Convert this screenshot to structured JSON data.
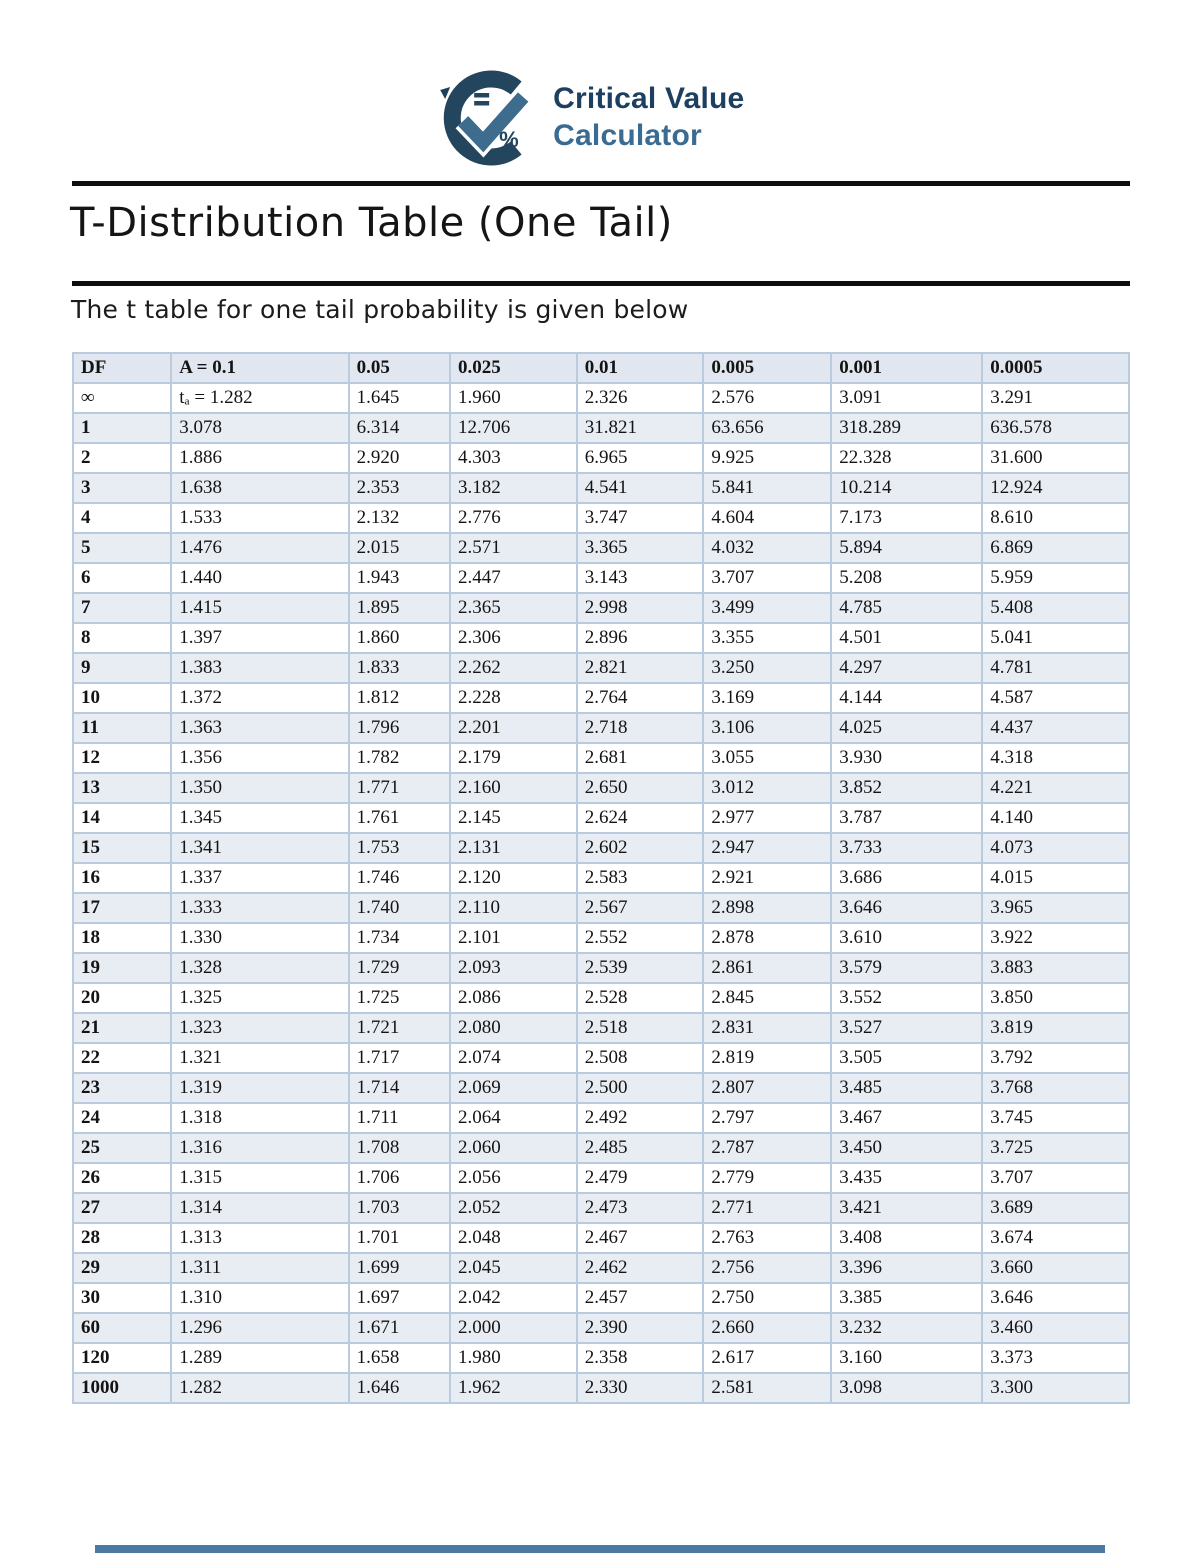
{
  "logo": {
    "line1": "Critical Value",
    "line2": "Calculator",
    "icon": "checkmark-percent-logo",
    "color_dark": "#1d4060",
    "color_mid": "#3a6b92"
  },
  "page": {
    "title": "T-Distribution Table (One Tail)",
    "subtitle": "The t table for one tail probability is given below"
  },
  "colors": {
    "stripe_row": "#e8ecf3",
    "header_row": "#e1e7f0",
    "cell_border": "#b9cbdd",
    "footer_bar": "#4c79a2",
    "rule": "#0e0e0e"
  },
  "table": {
    "headers": [
      "DF",
      "A = 0.1",
      "0.05",
      "0.025",
      "0.01",
      "0.005",
      "0.001",
      "0.0005"
    ],
    "rows": [
      {
        "df": "∞",
        "values": [
          "tₐ = 1.282",
          "1.645",
          "1.960",
          "2.326",
          "2.576",
          "3.091",
          "3.291"
        ]
      },
      {
        "df": "1",
        "values": [
          "3.078",
          "6.314",
          "12.706",
          "31.821",
          "63.656",
          "318.289",
          "636.578"
        ]
      },
      {
        "df": "2",
        "values": [
          "1.886",
          "2.920",
          "4.303",
          "6.965",
          "9.925",
          "22.328",
          "31.600"
        ]
      },
      {
        "df": "3",
        "values": [
          "1.638",
          "2.353",
          "3.182",
          "4.541",
          "5.841",
          "10.214",
          "12.924"
        ]
      },
      {
        "df": "4",
        "values": [
          "1.533",
          "2.132",
          "2.776",
          "3.747",
          "4.604",
          "7.173",
          "8.610"
        ]
      },
      {
        "df": "5",
        "values": [
          "1.476",
          "2.015",
          "2.571",
          "3.365",
          "4.032",
          "5.894",
          "6.869"
        ]
      },
      {
        "df": "6",
        "values": [
          "1.440",
          "1.943",
          "2.447",
          "3.143",
          "3.707",
          "5.208",
          "5.959"
        ]
      },
      {
        "df": "7",
        "values": [
          "1.415",
          "1.895",
          "2.365",
          "2.998",
          "3.499",
          "4.785",
          "5.408"
        ]
      },
      {
        "df": "8",
        "values": [
          "1.397",
          "1.860",
          "2.306",
          "2.896",
          "3.355",
          "4.501",
          "5.041"
        ]
      },
      {
        "df": "9",
        "values": [
          "1.383",
          "1.833",
          "2.262",
          "2.821",
          "3.250",
          "4.297",
          "4.781"
        ]
      },
      {
        "df": "10",
        "values": [
          "1.372",
          "1.812",
          "2.228",
          "2.764",
          "3.169",
          "4.144",
          "4.587"
        ]
      },
      {
        "df": "11",
        "values": [
          "1.363",
          "1.796",
          "2.201",
          "2.718",
          "3.106",
          "4.025",
          "4.437"
        ]
      },
      {
        "df": "12",
        "values": [
          "1.356",
          "1.782",
          "2.179",
          "2.681",
          "3.055",
          "3.930",
          "4.318"
        ]
      },
      {
        "df": "13",
        "values": [
          "1.350",
          "1.771",
          "2.160",
          "2.650",
          "3.012",
          "3.852",
          "4.221"
        ]
      },
      {
        "df": "14",
        "values": [
          "1.345",
          "1.761",
          "2.145",
          "2.624",
          "2.977",
          "3.787",
          "4.140"
        ]
      },
      {
        "df": "15",
        "values": [
          "1.341",
          "1.753",
          "2.131",
          "2.602",
          "2.947",
          "3.733",
          "4.073"
        ]
      },
      {
        "df": "16",
        "values": [
          "1.337",
          "1.746",
          "2.120",
          "2.583",
          "2.921",
          "3.686",
          "4.015"
        ]
      },
      {
        "df": "17",
        "values": [
          "1.333",
          "1.740",
          "2.110",
          "2.567",
          "2.898",
          "3.646",
          "3.965"
        ]
      },
      {
        "df": "18",
        "values": [
          "1.330",
          "1.734",
          "2.101",
          "2.552",
          "2.878",
          "3.610",
          "3.922"
        ]
      },
      {
        "df": "19",
        "values": [
          "1.328",
          "1.729",
          "2.093",
          "2.539",
          "2.861",
          "3.579",
          "3.883"
        ]
      },
      {
        "df": "20",
        "values": [
          "1.325",
          "1.725",
          "2.086",
          "2.528",
          "2.845",
          "3.552",
          "3.850"
        ]
      },
      {
        "df": "21",
        "values": [
          "1.323",
          "1.721",
          "2.080",
          "2.518",
          "2.831",
          "3.527",
          "3.819"
        ]
      },
      {
        "df": "22",
        "values": [
          "1.321",
          "1.717",
          "2.074",
          "2.508",
          "2.819",
          "3.505",
          "3.792"
        ]
      },
      {
        "df": "23",
        "values": [
          "1.319",
          "1.714",
          "2.069",
          "2.500",
          "2.807",
          "3.485",
          "3.768"
        ]
      },
      {
        "df": "24",
        "values": [
          "1.318",
          "1.711",
          "2.064",
          "2.492",
          "2.797",
          "3.467",
          "3.745"
        ]
      },
      {
        "df": "25",
        "values": [
          "1.316",
          "1.708",
          "2.060",
          "2.485",
          "2.787",
          "3.450",
          "3.725"
        ]
      },
      {
        "df": "26",
        "values": [
          "1.315",
          "1.706",
          "2.056",
          "2.479",
          "2.779",
          "3.435",
          "3.707"
        ]
      },
      {
        "df": "27",
        "values": [
          "1.314",
          "1.703",
          "2.052",
          "2.473",
          "2.771",
          "3.421",
          "3.689"
        ]
      },
      {
        "df": "28",
        "values": [
          "1.313",
          "1.701",
          "2.048",
          "2.467",
          "2.763",
          "3.408",
          "3.674"
        ]
      },
      {
        "df": "29",
        "values": [
          "1.311",
          "1.699",
          "2.045",
          "2.462",
          "2.756",
          "3.396",
          "3.660"
        ]
      },
      {
        "df": "30",
        "values": [
          "1.310",
          "1.697",
          "2.042",
          "2.457",
          "2.750",
          "3.385",
          "3.646"
        ]
      },
      {
        "df": "60",
        "values": [
          "1.296",
          "1.671",
          "2.000",
          "2.390",
          "2.660",
          "3.232",
          "3.460"
        ]
      },
      {
        "df": "120",
        "values": [
          "1.289",
          "1.658",
          "1.980",
          "2.358",
          "2.617",
          "3.160",
          "3.373"
        ]
      },
      {
        "df": "1000",
        "values": [
          "1.282",
          "1.646",
          "1.962",
          "2.330",
          "2.581",
          "3.098",
          "3.300"
        ]
      }
    ]
  }
}
